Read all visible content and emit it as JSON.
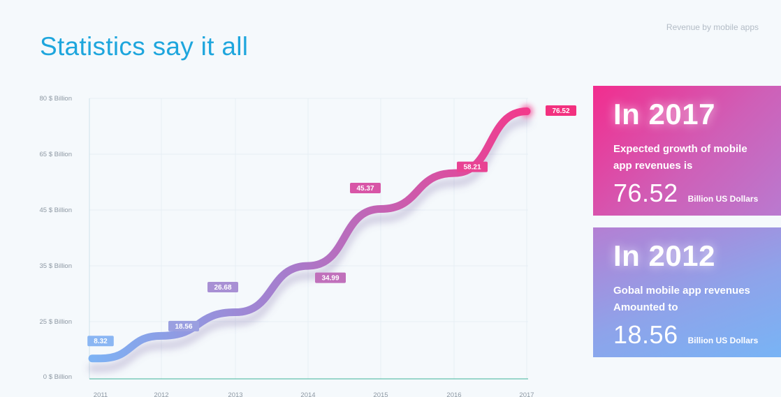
{
  "header": {
    "title": "Statistics say it all",
    "subtitle": "Revenue by mobile apps"
  },
  "colors": {
    "title": "#1ea6dd",
    "line_start": "#7db2f4",
    "line_mid": "#a77ccc",
    "line_end": "#f23a8c",
    "card_2017": "#f22d8e",
    "card_2012": "#78b4f5"
  },
  "chart_data": {
    "type": "line",
    "title": "",
    "xlabel": "",
    "ylabel": "",
    "grid": true,
    "categories": [
      "2011",
      "2012",
      "2013",
      "2014",
      "2015",
      "2016",
      "2017"
    ],
    "y_ticks": [
      {
        "label": "80 $ Billion",
        "value": 80
      },
      {
        "label": "65 $ Billion",
        "value": 65
      },
      {
        "label": "45 $ Billion",
        "value": 45
      },
      {
        "label": "35 $ Billion",
        "value": 35
      },
      {
        "label": "25 $ Billion",
        "value": 25
      },
      {
        "label": "0 $ Billion",
        "value": 0
      }
    ],
    "series": [
      {
        "values": [
          8.32,
          18.56,
          26.68,
          34.99,
          45.37,
          58.21,
          76.52
        ],
        "labels": [
          "8.32",
          "18.56",
          "26.68",
          "34.99",
          "45.37",
          "58.21",
          "76.52"
        ]
      }
    ]
  },
  "cards": [
    {
      "id": "c2017",
      "year": "In 2017",
      "text_line1": "Expected growth of mobile",
      "text_line2": "app revenues is",
      "value": "76.52",
      "unit": "Billion US Dollars"
    },
    {
      "id": "c2012",
      "year": "In 2012",
      "text_line1": "Gobal mobile app revenues",
      "text_line2": "Amounted to",
      "value": "18.56",
      "unit": "Billion US Dollars"
    }
  ]
}
